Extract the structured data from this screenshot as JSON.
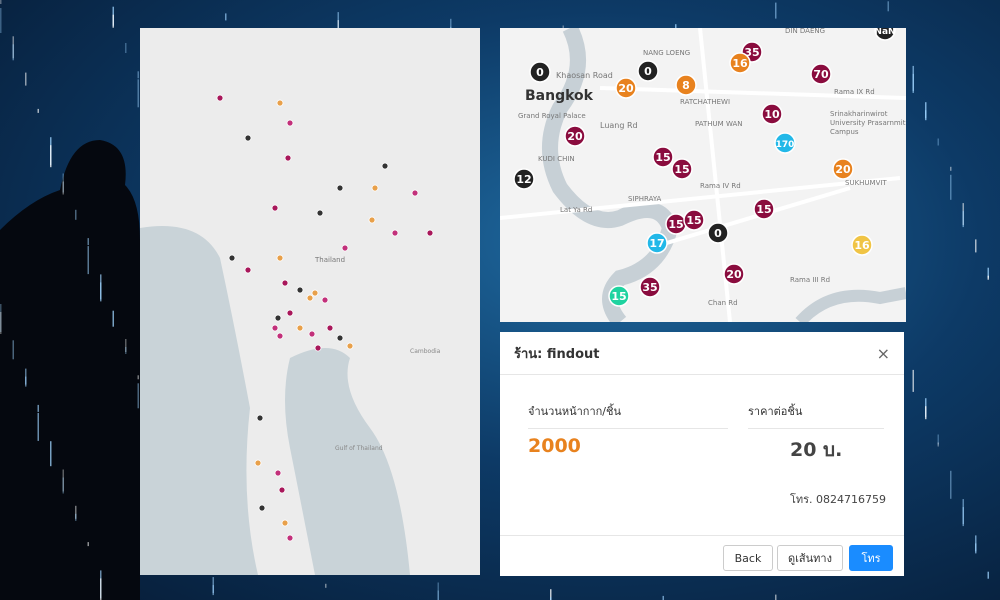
{
  "map_overview": {
    "labels": [
      "Thailand",
      "Gulf of Thailand",
      "Cambodia"
    ]
  },
  "map_detail": {
    "labels": [
      "NANG LOENG",
      "DIN DAENG",
      "Khaosan Road",
      "Bangkok",
      "Grand Royal Palace",
      "RATCHATHEWI",
      "PATHUM WAN",
      "Luang Rd",
      "Rama IX Rd",
      "Srinakharinwirot University Prasarnmit Campus",
      "KUDI CHIN",
      "SUKHUMVIT",
      "Lat Ya Rd",
      "SIPHRAYA",
      "Rama IV Rd",
      "Rama III Rd",
      "Chan Rd"
    ],
    "markers": [
      {
        "label": "35",
        "color": "#8a0c3e"
      },
      {
        "label": "16",
        "color": "#e8821e"
      },
      {
        "label": "70",
        "color": "#8a0c3e"
      },
      {
        "label": "0",
        "color": "#222222"
      },
      {
        "label": "0",
        "color": "#222222"
      },
      {
        "label": "20",
        "color": "#e8821e"
      },
      {
        "label": "8",
        "color": "#e8821e"
      },
      {
        "label": "10",
        "color": "#8a0c3e"
      },
      {
        "label": "170",
        "color": "#22b8e8"
      },
      {
        "label": "20",
        "color": "#8a0c3e"
      },
      {
        "label": "15",
        "color": "#8a0c3e"
      },
      {
        "label": "15",
        "color": "#8a0c3e"
      },
      {
        "label": "20",
        "color": "#e8821e"
      },
      {
        "label": "12",
        "color": "#222222"
      },
      {
        "label": "15",
        "color": "#8a0c3e"
      },
      {
        "label": "15",
        "color": "#8a0c3e"
      },
      {
        "label": "15",
        "color": "#8a0c3e"
      },
      {
        "label": "0",
        "color": "#222222"
      },
      {
        "label": "17",
        "color": "#22b8e8"
      },
      {
        "label": "16",
        "color": "#f0c445"
      },
      {
        "label": "20",
        "color": "#8a0c3e"
      },
      {
        "label": "15",
        "color": "#1fd3a0"
      },
      {
        "label": "35",
        "color": "#8a0c3e"
      },
      {
        "label": "NaN",
        "color": "#222222"
      }
    ]
  },
  "dialog": {
    "title": "ร้าน: findout",
    "columns": [
      "จำนวนหน้ากาก/ชิ้น",
      "ราคาต่อชิ้น"
    ],
    "quantity": "2000",
    "price": "20 บ.",
    "phone": "โทร. 0824716759",
    "buttons": [
      "Back",
      "ดูเส้นทาง",
      "โทร"
    ]
  }
}
